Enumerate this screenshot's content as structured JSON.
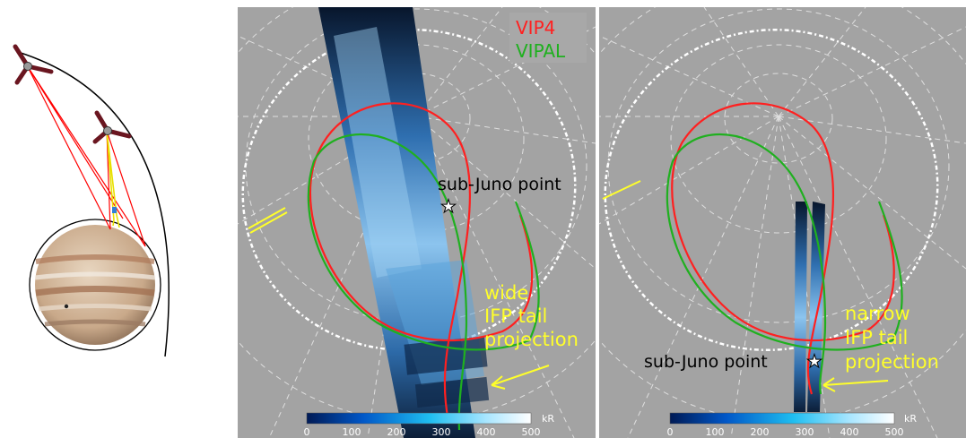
{
  "legend": {
    "vip4": {
      "label": "VIP4",
      "color": "#ff2020"
    },
    "vipal": {
      "label": "VIPAL",
      "color": "#1fb01f"
    }
  },
  "panels": [
    {
      "id": "left",
      "sub_juno_label": "sub-Juno point",
      "annotation": [
        "wide",
        "IFP tail",
        "projection"
      ],
      "colorbar": {
        "ticks": [
          "0",
          "100",
          "200",
          "300",
          "400",
          "500"
        ],
        "unit": "kR"
      }
    },
    {
      "id": "right",
      "sub_juno_label": "sub-Juno point",
      "annotation": [
        "narrow",
        "IFP tail",
        "projection"
      ],
      "colorbar": {
        "ticks": [
          "0",
          "100",
          "200",
          "300",
          "400",
          "500"
        ],
        "unit": "kR"
      }
    }
  ],
  "colors": {
    "panel_bg": "#a3a3a3",
    "annotation": "#ffff2a",
    "spacecraft": "#6a1620",
    "orbit": "#000000"
  }
}
